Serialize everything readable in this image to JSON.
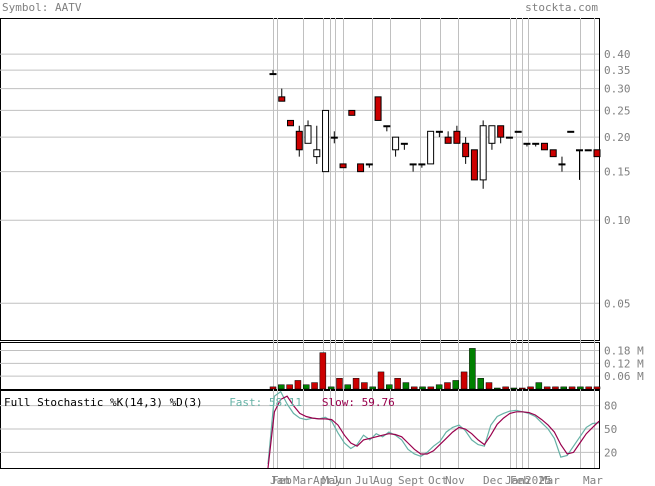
{
  "header": {
    "symbol_label": "Symbol:",
    "symbol": "AATV",
    "brand": "stockta.com"
  },
  "colors": {
    "up": "#ffffff",
    "down": "#cc0000",
    "vol_up": "#008000",
    "vol_down": "#cc0000",
    "fast": "#66b2a6",
    "slow": "#99004d",
    "grid": "#c0c0c0",
    "axis_text": "#808080"
  },
  "chart_data": [
    {
      "type": "candlestick",
      "title": "",
      "scale": "log",
      "ylim": [
        0.04,
        0.45
      ],
      "y_ticks": [
        "0.40",
        "0.35",
        "0.30",
        "0.25",
        "0.20",
        "0.15",
        "0.10",
        "0.05"
      ],
      "x_labels": [
        "Jan",
        "Feb",
        "Mar",
        "Apr",
        "May",
        "Jun",
        "Jul",
        "Aug",
        "Sept",
        "Oct",
        "Nov",
        "Dec",
        "Jan",
        "Feb",
        "2025",
        "Mar",
        "Mar"
      ],
      "candles": [
        {
          "o": 0.34,
          "h": 0.35,
          "l": 0.34,
          "c": 0.34
        },
        {
          "o": 0.28,
          "h": 0.3,
          "l": 0.27,
          "c": 0.27
        },
        {
          "o": 0.23,
          "h": 0.23,
          "l": 0.22,
          "c": 0.22
        },
        {
          "o": 0.21,
          "h": 0.22,
          "l": 0.17,
          "c": 0.18
        },
        {
          "o": 0.19,
          "h": 0.23,
          "l": 0.19,
          "c": 0.22
        },
        {
          "o": 0.17,
          "h": 0.22,
          "l": 0.16,
          "c": 0.18
        },
        {
          "o": 0.15,
          "h": 0.25,
          "l": 0.15,
          "c": 0.25
        },
        {
          "o": 0.2,
          "h": 0.21,
          "l": 0.19,
          "c": 0.2
        },
        {
          "o": 0.16,
          "h": 0.16,
          "l": 0.155,
          "c": 0.155
        },
        {
          "o": 0.25,
          "h": 0.25,
          "l": 0.24,
          "c": 0.24
        },
        {
          "o": 0.16,
          "h": 0.16,
          "l": 0.15,
          "c": 0.15
        },
        {
          "o": 0.16,
          "h": 0.16,
          "l": 0.155,
          "c": 0.16
        },
        {
          "o": 0.28,
          "h": 0.28,
          "l": 0.23,
          "c": 0.23
        },
        {
          "o": 0.22,
          "h": 0.22,
          "l": 0.21,
          "c": 0.22
        },
        {
          "o": 0.18,
          "h": 0.2,
          "l": 0.17,
          "c": 0.2
        },
        {
          "o": 0.19,
          "h": 0.19,
          "l": 0.18,
          "c": 0.19
        },
        {
          "o": 0.16,
          "h": 0.16,
          "l": 0.15,
          "c": 0.16
        },
        {
          "o": 0.16,
          "h": 0.16,
          "l": 0.155,
          "c": 0.16
        },
        {
          "o": 0.16,
          "h": 0.21,
          "l": 0.16,
          "c": 0.21
        },
        {
          "o": 0.21,
          "h": 0.21,
          "l": 0.2,
          "c": 0.21
        },
        {
          "o": 0.2,
          "h": 0.21,
          "l": 0.19,
          "c": 0.19
        },
        {
          "o": 0.21,
          "h": 0.22,
          "l": 0.19,
          "c": 0.19
        },
        {
          "o": 0.19,
          "h": 0.2,
          "l": 0.16,
          "c": 0.17
        },
        {
          "o": 0.18,
          "h": 0.18,
          "l": 0.14,
          "c": 0.14
        },
        {
          "o": 0.14,
          "h": 0.23,
          "l": 0.13,
          "c": 0.22
        },
        {
          "o": 0.19,
          "h": 0.22,
          "l": 0.18,
          "c": 0.22
        },
        {
          "o": 0.22,
          "h": 0.22,
          "l": 0.19,
          "c": 0.2
        },
        {
          "o": 0.2,
          "h": 0.2,
          "l": 0.2,
          "c": 0.2
        },
        {
          "o": 0.21,
          "h": 0.21,
          "l": 0.21,
          "c": 0.21
        },
        {
          "o": 0.19,
          "h": 0.19,
          "l": 0.185,
          "c": 0.19
        },
        {
          "o": 0.19,
          "h": 0.19,
          "l": 0.185,
          "c": 0.19
        },
        {
          "o": 0.19,
          "h": 0.19,
          "l": 0.18,
          "c": 0.18
        },
        {
          "o": 0.18,
          "h": 0.18,
          "l": 0.17,
          "c": 0.17
        },
        {
          "o": 0.16,
          "h": 0.17,
          "l": 0.15,
          "c": 0.16
        },
        {
          "o": 0.21,
          "h": 0.21,
          "l": 0.21,
          "c": 0.21
        },
        {
          "o": 0.18,
          "h": 0.18,
          "l": 0.14,
          "c": 0.18
        },
        {
          "o": 0.18,
          "h": 0.18,
          "l": 0.18,
          "c": 0.18
        },
        {
          "o": 0.18,
          "h": 0.18,
          "l": 0.17,
          "c": 0.17
        }
      ]
    },
    {
      "type": "bar",
      "title": "",
      "y_ticks": [
        "0.18 M",
        "0.12 M",
        "0.06 M"
      ],
      "ylim": [
        0,
        0.22
      ],
      "values": [
        0.01,
        0.02,
        0.02,
        0.04,
        0.02,
        0.03,
        0.17,
        0.01,
        0.05,
        0.02,
        0.05,
        0.03,
        0.01,
        0.08,
        0.02,
        0.05,
        0.03,
        0.01,
        0.01,
        0.01,
        0.02,
        0.03,
        0.04,
        0.08,
        0.19,
        0.05,
        0.03,
        0.0,
        0.01,
        0.0,
        0.0,
        0.01,
        0.03,
        0.01,
        0.01,
        0.01,
        0.01,
        0.01,
        0.01,
        0.01
      ],
      "colors": [
        "r",
        "g",
        "r",
        "r",
        "g",
        "r",
        "r",
        "g",
        "r",
        "g",
        "r",
        "r",
        "g",
        "r",
        "g",
        "r",
        "g",
        "r",
        "g",
        "r",
        "g",
        "r",
        "g",
        "r",
        "g",
        "g",
        "r",
        "g",
        "r",
        "g",
        "r",
        "r",
        "g",
        "r",
        "r",
        "g",
        "r",
        "g",
        "r",
        "r"
      ]
    },
    {
      "type": "line",
      "title": "Full Stochastic %K(14,3) %D(3)",
      "ylim": [
        0,
        100
      ],
      "y_ticks": [
        "80",
        "50",
        "20"
      ],
      "series": [
        {
          "name": "Fast",
          "label": "Fast: 58.11",
          "values": [
            5,
            92,
            98,
            82,
            70,
            64,
            62,
            64,
            63,
            65,
            60,
            45,
            32,
            25,
            30,
            42,
            36,
            44,
            40,
            46,
            42,
            36,
            24,
            18,
            15,
            20,
            28,
            34,
            46,
            52,
            55,
            48,
            36,
            30,
            28,
            55,
            66,
            70,
            73,
            74,
            72,
            70,
            66,
            58,
            50,
            38,
            14,
            16,
            28,
            40,
            52,
            57,
            58
          ]
        },
        {
          "name": "Slow",
          "label": "Slow: 59.76",
          "values": [
            0,
            72,
            88,
            92,
            80,
            70,
            66,
            64,
            63,
            63,
            62,
            55,
            42,
            32,
            28,
            36,
            38,
            40,
            42,
            44,
            43,
            40,
            32,
            24,
            18,
            18,
            22,
            30,
            38,
            46,
            52,
            50,
            44,
            36,
            30,
            42,
            56,
            64,
            70,
            72,
            72,
            71,
            68,
            62,
            55,
            46,
            30,
            18,
            20,
            32,
            44,
            52,
            60
          ]
        }
      ]
    }
  ]
}
